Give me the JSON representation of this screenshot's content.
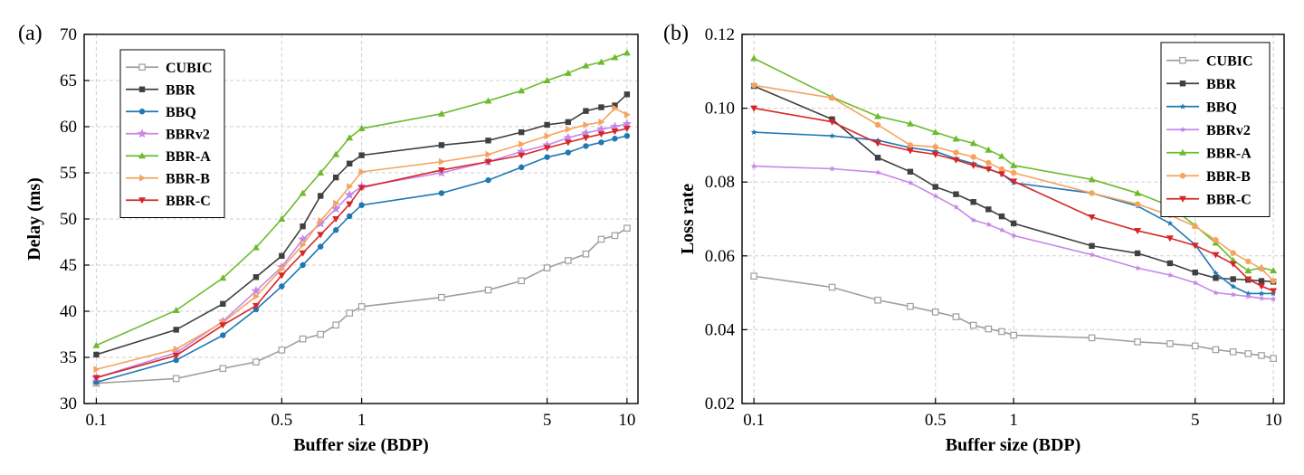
{
  "chart_data": [
    {
      "type": "line",
      "panel_label": "(a)",
      "xlabel": "Buffer size (BDP)",
      "ylabel": "Delay (ms)",
      "xscale": "log",
      "xlim": [
        0.09,
        11
      ],
      "ylim": [
        30,
        70
      ],
      "xticks": [
        0.1,
        0.5,
        1,
        5,
        10
      ],
      "xtick_labels": [
        "0.1",
        "0.5",
        "1",
        "5",
        "10"
      ],
      "yticks": [
        30,
        35,
        40,
        45,
        50,
        55,
        60,
        65,
        70
      ],
      "ytick_labels": [
        "30",
        "35",
        "40",
        "45",
        "50",
        "55",
        "60",
        "65",
        "70"
      ],
      "grid": true,
      "legend_position": "top-left",
      "x": [
        0.1,
        0.2,
        0.3,
        0.4,
        0.5,
        0.6,
        0.7,
        0.8,
        0.9,
        1,
        2,
        3,
        4,
        5,
        6,
        7,
        8,
        9,
        10
      ],
      "series": [
        {
          "name": "CUBIC",
          "color": "#9e9e9e",
          "marker": "square-open",
          "values": [
            32.2,
            32.7,
            33.8,
            34.5,
            35.8,
            37.0,
            37.5,
            38.5,
            39.8,
            40.5,
            41.5,
            42.3,
            43.3,
            44.7,
            45.5,
            46.2,
            47.8,
            48.2,
            49.0
          ]
        },
        {
          "name": "BBR",
          "color": "#404040",
          "marker": "square",
          "values": [
            35.3,
            38.0,
            40.8,
            43.7,
            46.0,
            49.2,
            52.5,
            54.5,
            56.0,
            56.9,
            58.0,
            58.5,
            59.4,
            60.2,
            60.5,
            61.7,
            62.1,
            62.3,
            63.5
          ]
        },
        {
          "name": "BBQ",
          "color": "#1f77b4",
          "marker": "circle",
          "values": [
            32.3,
            34.7,
            37.4,
            40.2,
            42.7,
            45.0,
            47.0,
            48.8,
            50.3,
            51.5,
            52.8,
            54.2,
            55.6,
            56.7,
            57.2,
            57.9,
            58.3,
            58.7,
            59.0
          ]
        },
        {
          "name": "BBRv2",
          "color": "#c688e8",
          "marker": "star",
          "values": [
            32.8,
            35.5,
            38.9,
            42.2,
            44.8,
            47.8,
            49.5,
            51.1,
            52.6,
            53.5,
            55.0,
            56.2,
            57.3,
            58.0,
            58.8,
            59.3,
            59.7,
            60.0,
            60.3
          ]
        },
        {
          "name": "BBR-A",
          "color": "#6dbb2c",
          "marker": "triangle-up",
          "values": [
            36.3,
            40.1,
            43.6,
            46.9,
            50.0,
            52.8,
            55.0,
            57.0,
            58.8,
            59.8,
            61.4,
            62.8,
            63.9,
            65.0,
            65.8,
            66.6,
            67.0,
            67.5,
            68.0
          ]
        },
        {
          "name": "BBR-B",
          "color": "#f4a460",
          "marker": "triangle-right",
          "values": [
            33.7,
            35.9,
            38.8,
            41.6,
            44.6,
            47.2,
            49.8,
            51.7,
            53.5,
            55.1,
            56.2,
            57.0,
            58.1,
            59.0,
            59.7,
            60.2,
            60.5,
            62.0,
            61.3
          ]
        },
        {
          "name": "BBR-C",
          "color": "#d62728",
          "marker": "triangle-down",
          "values": [
            32.8,
            35.2,
            38.5,
            40.6,
            43.9,
            46.3,
            48.3,
            50.0,
            51.6,
            53.4,
            55.3,
            56.2,
            56.9,
            57.7,
            58.3,
            58.8,
            59.2,
            59.5,
            59.8
          ]
        }
      ]
    },
    {
      "type": "line",
      "panel_label": "(b)",
      "xlabel": "Buffer size (BDP)",
      "ylabel": "Loss rate",
      "xscale": "log",
      "xlim": [
        0.09,
        11
      ],
      "ylim": [
        0.02,
        0.12
      ],
      "xticks": [
        0.1,
        0.5,
        1,
        5,
        10
      ],
      "xtick_labels": [
        "0.1",
        "0.5",
        "1",
        "5",
        "10"
      ],
      "yticks": [
        0.02,
        0.04,
        0.06,
        0.08,
        0.1,
        0.12
      ],
      "ytick_labels": [
        "0.02",
        "0.04",
        "0.06",
        "0.08",
        "0.10",
        "0.12"
      ],
      "grid": true,
      "legend_position": "top-right",
      "x": [
        0.1,
        0.2,
        0.3,
        0.4,
        0.5,
        0.6,
        0.7,
        0.8,
        0.9,
        1,
        2,
        3,
        4,
        5,
        6,
        7,
        8,
        9,
        10
      ],
      "series": [
        {
          "name": "CUBIC",
          "color": "#9e9e9e",
          "marker": "square-open",
          "values": [
            0.0545,
            0.0515,
            0.048,
            0.0463,
            0.0448,
            0.0435,
            0.0412,
            0.0402,
            0.0395,
            0.0385,
            0.0378,
            0.0367,
            0.0362,
            0.0356,
            0.0346,
            0.034,
            0.0335,
            0.033,
            0.0322
          ]
        },
        {
          "name": "BBR",
          "color": "#404040",
          "marker": "square",
          "values": [
            0.106,
            0.097,
            0.0866,
            0.0828,
            0.0787,
            0.0767,
            0.0746,
            0.0726,
            0.0707,
            0.0688,
            0.0627,
            0.0607,
            0.058,
            0.0555,
            0.054,
            0.0537,
            0.0535,
            0.0532,
            0.053
          ]
        },
        {
          "name": "BBQ",
          "color": "#1f77b4",
          "marker": "star-small",
          "values": [
            0.0935,
            0.0925,
            0.0913,
            0.0893,
            0.0883,
            0.0863,
            0.085,
            0.0836,
            0.0822,
            0.0798,
            0.077,
            0.0735,
            0.0688,
            0.063,
            0.0553,
            0.0517,
            0.0498,
            0.0498,
            0.0498
          ]
        },
        {
          "name": "BBRv2",
          "color": "#c688e8",
          "marker": "star-small",
          "values": [
            0.0843,
            0.0836,
            0.0826,
            0.0798,
            0.0762,
            0.0732,
            0.0697,
            0.0685,
            0.067,
            0.0655,
            0.0603,
            0.0567,
            0.0548,
            0.0527,
            0.05,
            0.0495,
            0.049,
            0.0485,
            0.0483
          ]
        },
        {
          "name": "BBR-A",
          "color": "#6dbb2c",
          "marker": "triangle-up",
          "values": [
            0.1135,
            0.103,
            0.0978,
            0.0958,
            0.0935,
            0.0917,
            0.0905,
            0.0887,
            0.087,
            0.0845,
            0.0807,
            0.077,
            0.0735,
            0.0682,
            0.0635,
            0.0588,
            0.056,
            0.0568,
            0.056
          ]
        },
        {
          "name": "BBR-B",
          "color": "#f4a460",
          "marker": "circle",
          "values": [
            0.1062,
            0.1028,
            0.0955,
            0.09,
            0.0895,
            0.088,
            0.0868,
            0.0852,
            0.0835,
            0.0825,
            0.077,
            0.074,
            0.071,
            0.068,
            0.0643,
            0.0608,
            0.0585,
            0.0565,
            0.0532
          ]
        },
        {
          "name": "BBR-C",
          "color": "#d62728",
          "marker": "triangle-down",
          "values": [
            0.1,
            0.0963,
            0.0905,
            0.0885,
            0.0875,
            0.086,
            0.0845,
            0.0835,
            0.0822,
            0.0802,
            0.0705,
            0.0668,
            0.0648,
            0.0628,
            0.0603,
            0.0578,
            0.0537,
            0.0518,
            0.0505
          ]
        }
      ]
    }
  ]
}
